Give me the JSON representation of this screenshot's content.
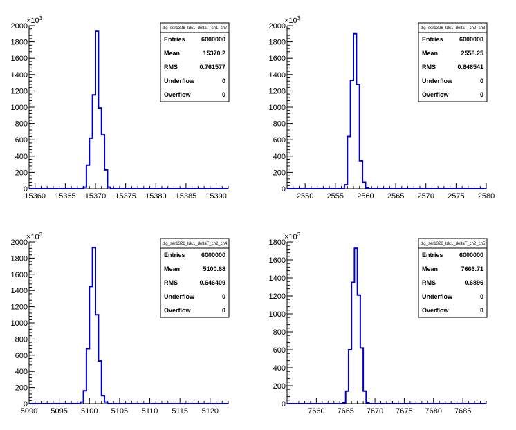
{
  "colors": {
    "histogram": "#0000cc",
    "axis": "#000000",
    "background": "#ffffff"
  },
  "chart_data": [
    {
      "type": "histogram",
      "title": "",
      "xlabel": "",
      "ylabel": "",
      "y_exponent_label": "×10",
      "y_exponent": "3",
      "xlim": [
        15359,
        15392
      ],
      "ylim": [
        0,
        2000
      ],
      "x_ticks": [
        15360,
        15365,
        15370,
        15375,
        15380,
        15385,
        15390
      ],
      "x_tick_labels": [
        "15360",
        "15365",
        "15370",
        "15375",
        "15380",
        "15385",
        "15390"
      ],
      "y_ticks": [
        0,
        200,
        400,
        600,
        800,
        1000,
        1200,
        1400,
        1600,
        1800,
        2000
      ],
      "y_tick_labels": [
        "0",
        "200",
        "400",
        "600",
        "800",
        "1000",
        "1200",
        "1400",
        "1600",
        "1800",
        "2000"
      ],
      "bin_width": 0.5,
      "bins_x": [
        15368,
        15368.5,
        15369,
        15369.5,
        15370,
        15370.5,
        15371,
        15371.5,
        15372
      ],
      "bins_y": [
        20,
        290,
        620,
        1150,
        1930,
        990,
        660,
        230,
        20
      ],
      "stats": {
        "name": "dig_ser1326_tdc1_deltaT_ch1_ch7",
        "rows": [
          {
            "label": "Entries",
            "value": "6000000"
          },
          {
            "label": "Mean",
            "value": "15370.2"
          },
          {
            "label": "RMS",
            "value": "0.761577"
          },
          {
            "label": "Underflow",
            "value": "0"
          },
          {
            "label": "Overflow",
            "value": "0"
          }
        ]
      }
    },
    {
      "type": "histogram",
      "title": "",
      "xlabel": "",
      "ylabel": "",
      "y_exponent_label": "×10",
      "y_exponent": "3",
      "xlim": [
        2547,
        2580
      ],
      "ylim": [
        0,
        2000
      ],
      "x_ticks": [
        2550,
        2555,
        2560,
        2565,
        2570,
        2575,
        2580
      ],
      "x_tick_labels": [
        "2550",
        "2555",
        "2560",
        "2565",
        "2570",
        "2575",
        "2580"
      ],
      "y_ticks": [
        0,
        200,
        400,
        600,
        800,
        1000,
        1200,
        1400,
        1600,
        1800,
        2000
      ],
      "y_tick_labels": [
        "0",
        "200",
        "400",
        "600",
        "800",
        "1000",
        "1200",
        "1400",
        "1600",
        "1800",
        "2000"
      ],
      "bin_width": 0.5,
      "bins_x": [
        2556.5,
        2557,
        2557.5,
        2558,
        2558.5,
        2559,
        2559.5,
        2560
      ],
      "bins_y": [
        50,
        640,
        1330,
        1900,
        1280,
        340,
        80,
        10
      ],
      "stats": {
        "name": "dig_ser1326_tdc1_deltaT_ch2_ch3",
        "rows": [
          {
            "label": "Entries",
            "value": "6000000"
          },
          {
            "label": "Mean",
            "value": "2558.25"
          },
          {
            "label": "RMS",
            "value": "0.648541"
          },
          {
            "label": "Underflow",
            "value": "0"
          },
          {
            "label": "Overflow",
            "value": "0"
          }
        ]
      }
    },
    {
      "type": "histogram",
      "title": "",
      "xlabel": "",
      "ylabel": "",
      "y_exponent_label": "×10",
      "y_exponent": "3",
      "xlim": [
        5090,
        5123
      ],
      "ylim": [
        0,
        2000
      ],
      "x_ticks": [
        5090,
        5095,
        5100,
        5105,
        5110,
        5115,
        5120
      ],
      "x_tick_labels": [
        "5090",
        "5095",
        "5100",
        "5105",
        "5110",
        "5115",
        "5120"
      ],
      "y_ticks": [
        0,
        200,
        400,
        600,
        800,
        1000,
        1200,
        1400,
        1600,
        1800,
        2000
      ],
      "y_tick_labels": [
        "0",
        "200",
        "400",
        "600",
        "800",
        "1000",
        "1200",
        "1400",
        "1600",
        "1800",
        "2000"
      ],
      "bin_width": 0.5,
      "bins_x": [
        5098.5,
        5099,
        5099.5,
        5100,
        5100.5,
        5101,
        5101.5,
        5102,
        5102.5
      ],
      "bins_y": [
        20,
        160,
        680,
        1450,
        1930,
        1100,
        530,
        100,
        20
      ],
      "stats": {
        "name": "dig_ser1326_tdc1_deltaT_ch2_ch4",
        "rows": [
          {
            "label": "Entries",
            "value": "6000000"
          },
          {
            "label": "Mean",
            "value": "5100.68"
          },
          {
            "label": "RMS",
            "value": "0.646409"
          },
          {
            "label": "Underflow",
            "value": "0"
          },
          {
            "label": "Overflow",
            "value": "0"
          }
        ]
      }
    },
    {
      "type": "histogram",
      "title": "",
      "xlabel": "",
      "ylabel": "",
      "y_exponent_label": "×10",
      "y_exponent": "3",
      "xlim": [
        7655,
        7689
      ],
      "ylim": [
        0,
        1800
      ],
      "x_ticks": [
        7660,
        7665,
        7670,
        7675,
        7680,
        7685
      ],
      "x_tick_labels": [
        "7660",
        "7665",
        "7670",
        "7675",
        "7680",
        "7685"
      ],
      "y_ticks": [
        0,
        200,
        400,
        600,
        800,
        1000,
        1200,
        1400,
        1600,
        1800
      ],
      "y_tick_labels": [
        "0",
        "200",
        "400",
        "600",
        "800",
        "1000",
        "1200",
        "1400",
        "1600",
        "1800"
      ],
      "bin_width": 0.5,
      "bins_x": [
        7664.5,
        7665,
        7665.5,
        7666,
        7666.5,
        7667,
        7667.5,
        7668,
        7668.5
      ],
      "bins_y": [
        10,
        140,
        600,
        1350,
        1730,
        1210,
        620,
        140,
        10
      ],
      "stats": {
        "name": "dig_ser1326_tdc1_deltaT_ch2_ch5",
        "rows": [
          {
            "label": "Entries",
            "value": "6000000"
          },
          {
            "label": "Mean",
            "value": "7666.71"
          },
          {
            "label": "RMS",
            "value": "0.6896"
          },
          {
            "label": "Underflow",
            "value": "0"
          },
          {
            "label": "Overflow",
            "value": "0"
          }
        ]
      }
    }
  ]
}
